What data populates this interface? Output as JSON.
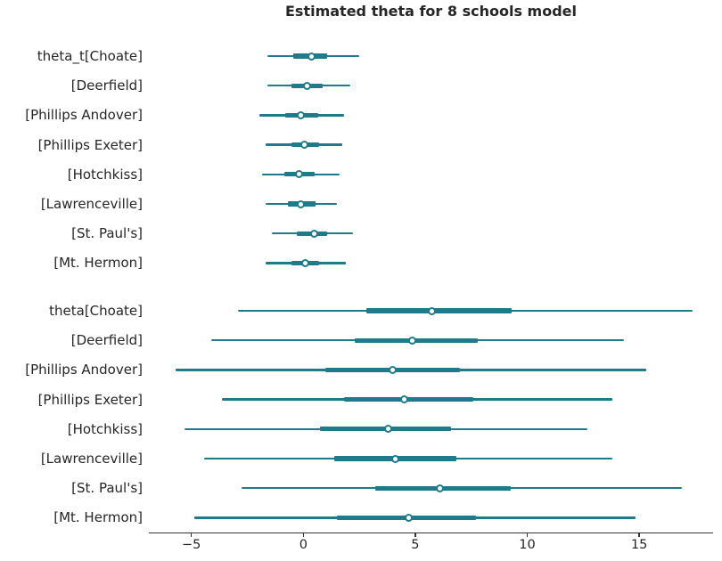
{
  "chart_data": {
    "type": "forest",
    "title": "Estimated theta for 8 schools model",
    "xlabel": "",
    "ylabel": "",
    "xlim": [
      -6.9,
      18.3
    ],
    "grid": false,
    "legend_position": "none",
    "marker": "open-circle-median",
    "colors": {
      "interval": "#1f7a8c",
      "text": "#262626",
      "axis": "#333333",
      "background": "#ffffff"
    },
    "xticks": [
      {
        "value": -5,
        "label": "−5"
      },
      {
        "value": 0,
        "label": "0"
      },
      {
        "value": 5,
        "label": "5"
      },
      {
        "value": 10,
        "label": "10"
      },
      {
        "value": 15,
        "label": "15"
      }
    ],
    "groups": [
      {
        "name": "theta_t",
        "rows": [
          {
            "label": "theta_t[Choate]",
            "hdi": [
              -1.6,
              2.5
            ],
            "quartile": [
              -0.45,
              1.05
            ],
            "median": 0.35
          },
          {
            "label": "[Deerfield]",
            "hdi": [
              -1.6,
              2.1
            ],
            "quartile": [
              -0.55,
              0.85
            ],
            "median": 0.15
          },
          {
            "label": "[Phillips Andover]",
            "hdi": [
              -1.95,
              1.8
            ],
            "quartile": [
              -0.8,
              0.65
            ],
            "median": -0.1
          },
          {
            "label": "[Phillips Exeter]",
            "hdi": [
              -1.7,
              1.75
            ],
            "quartile": [
              -0.55,
              0.7
            ],
            "median": 0.05
          },
          {
            "label": "[Hotchkiss]",
            "hdi": [
              -1.85,
              1.6
            ],
            "quartile": [
              -0.85,
              0.5
            ],
            "median": -0.2
          },
          {
            "label": "[Lawrenceville]",
            "hdi": [
              -1.7,
              1.5
            ],
            "quartile": [
              -0.7,
              0.55
            ],
            "median": -0.1
          },
          {
            "label": "[St. Paul's]",
            "hdi": [
              -1.4,
              2.2
            ],
            "quartile": [
              -0.3,
              1.05
            ],
            "median": 0.5
          },
          {
            "label": "[Mt. Hermon]",
            "hdi": [
              -1.7,
              1.9
            ],
            "quartile": [
              -0.55,
              0.7
            ],
            "median": 0.1
          }
        ]
      },
      {
        "name": "theta",
        "rows": [
          {
            "label": "theta[Choate]",
            "hdi": [
              -2.9,
              17.4
            ],
            "quartile": [
              2.8,
              9.3
            ],
            "median": 5.75
          },
          {
            "label": "[Deerfield]",
            "hdi": [
              -4.1,
              14.3
            ],
            "quartile": [
              2.3,
              7.8
            ],
            "median": 4.85
          },
          {
            "label": "[Phillips Andover]",
            "hdi": [
              -5.7,
              15.3
            ],
            "quartile": [
              1.0,
              7.0
            ],
            "median": 4.0
          },
          {
            "label": "[Phillips Exeter]",
            "hdi": [
              -3.65,
              13.8
            ],
            "quartile": [
              1.8,
              7.6
            ],
            "median": 4.5
          },
          {
            "label": "[Hotchkiss]",
            "hdi": [
              -5.3,
              12.7
            ],
            "quartile": [
              0.75,
              6.6
            ],
            "median": 3.8
          },
          {
            "label": "[Lawrenceville]",
            "hdi": [
              -4.45,
              13.8
            ],
            "quartile": [
              1.4,
              6.85
            ],
            "median": 4.1
          },
          {
            "label": "[St. Paul's]",
            "hdi": [
              -2.75,
              16.9
            ],
            "quartile": [
              3.2,
              9.25
            ],
            "median": 6.1
          },
          {
            "label": "[Mt. Hermon]",
            "hdi": [
              -4.85,
              14.85
            ],
            "quartile": [
              1.5,
              7.7
            ],
            "median": 4.7
          }
        ]
      }
    ]
  }
}
